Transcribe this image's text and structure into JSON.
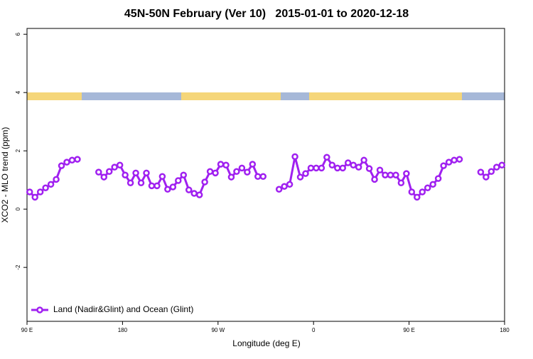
{
  "chart_data": {
    "type": "line",
    "title": "45N-50N February (Ver 10)   2015-01-01 to 2020-12-18",
    "xlabel": "Longitude (deg E)",
    "ylabel": "XCO2 - MLO trend (ppm)",
    "xlim": [
      90,
      540
    ],
    "ylim": [
      -3.85,
      6.2
    ],
    "xticks": [
      {
        "value": 90,
        "label": "90 E"
      },
      180,
      {
        "value": 270,
        "label": "90 W"
      },
      {
        "value": 360,
        "label": "0"
      },
      {
        "value": 450,
        "label": "90 E"
      },
      {
        "value": 540,
        "label": "180"
      }
    ],
    "yticks": [
      -2,
      0,
      2,
      4,
      6
    ],
    "legend": "bottom-left",
    "x": [
      92.5,
      97.5,
      102.5,
      107.5,
      112.5,
      117.5,
      122.5,
      127.5,
      132.5,
      137.5,
      142.5,
      147.5,
      152.5,
      157.5,
      162.5,
      167.5,
      172.5,
      177.5,
      182.5,
      187.5,
      192.5,
      197.5,
      202.5,
      207.5,
      212.5,
      217.5,
      222.5,
      227.5,
      232.5,
      237.5,
      242.5,
      247.5,
      252.5,
      257.5,
      262.5,
      267.5,
      272.5,
      277.5,
      282.5,
      287.5,
      292.5,
      297.5,
      302.5,
      307.5,
      312.5,
      317.5,
      322.5,
      327.5,
      332.5,
      337.5,
      342.5,
      347.5,
      352.5,
      357.5,
      362.5,
      367.5,
      372.5,
      377.5,
      382.5,
      387.5,
      392.5,
      397.5,
      402.5,
      407.5,
      412.5,
      417.5,
      422.5,
      427.5,
      432.5,
      437.5,
      442.5,
      447.5,
      452.5,
      457.5,
      462.5,
      467.5,
      472.5,
      477.5,
      482.5,
      487.5,
      492.5,
      497.5,
      502.5,
      507.5,
      512.5,
      517.5,
      522.5,
      527.5,
      532.5,
      537.5
    ],
    "series": [
      {
        "name": "Land (Nadir&Glint) and Ocean (Glint)",
        "color": "#a020f0",
        "values": [
          0.59,
          0.41,
          0.59,
          0.73,
          0.85,
          1.02,
          1.49,
          1.61,
          1.68,
          1.71,
          null,
          null,
          null,
          1.27,
          1.1,
          1.29,
          1.44,
          1.51,
          1.17,
          0.9,
          1.24,
          0.9,
          1.24,
          0.8,
          0.8,
          1.12,
          0.68,
          0.76,
          0.98,
          1.17,
          0.66,
          0.54,
          0.49,
          0.93,
          1.29,
          1.24,
          1.54,
          1.51,
          1.1,
          1.29,
          1.41,
          1.27,
          1.54,
          1.12,
          1.12,
          null,
          null,
          0.68,
          0.78,
          0.85,
          1.8,
          1.1,
          1.22,
          1.41,
          1.41,
          1.41,
          1.78,
          1.51,
          1.41,
          1.41,
          1.59,
          1.51,
          1.44,
          1.68,
          1.39,
          1.02,
          1.34,
          1.17,
          1.17,
          1.17,
          0.9,
          1.22,
          0.59,
          0.41,
          0.59,
          0.73,
          0.85,
          1.05,
          1.49,
          1.61,
          1.68,
          1.71,
          null,
          null,
          null,
          1.27,
          1.1,
          1.29,
          1.44,
          1.51
        ]
      }
    ]
  }
}
